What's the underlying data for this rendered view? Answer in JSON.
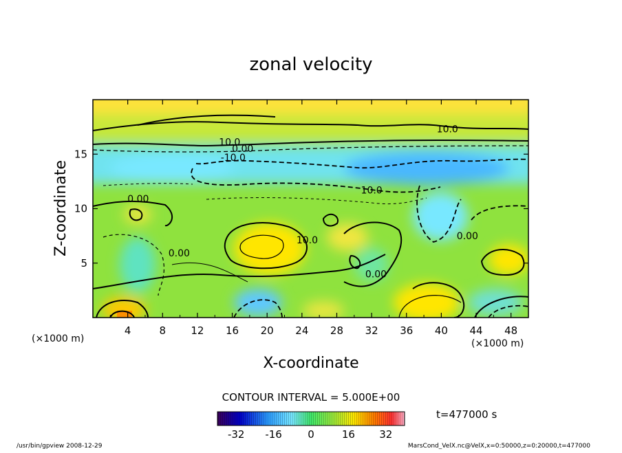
{
  "chart_data": {
    "type": "heatmap",
    "title": "zonal velocity",
    "xlabel": "X-coordinate",
    "ylabel": "Z-coordinate",
    "x_unit_label": "(×1000 m)",
    "y_unit_label": "(×1000 m)",
    "xlim": [
      0,
      50
    ],
    "ylim": [
      0,
      20
    ],
    "x_ticks": [
      4,
      8,
      12,
      16,
      20,
      24,
      28,
      32,
      36,
      40,
      44,
      48
    ],
    "y_ticks": [
      5,
      10,
      15
    ],
    "contour_interval_label": "CONTOUR INTERVAL = 5.000E+00",
    "time_label": "t=477000 s",
    "colorbar": {
      "min": -40,
      "max": 40,
      "ticks": [
        -32,
        -16,
        0,
        16,
        32
      ],
      "colormap": [
        "#3a0058",
        "#0000c8",
        "#2a9bff",
        "#78e8ff",
        "#3fe66a",
        "#9be83a",
        "#ffe600",
        "#ff7a00",
        "#ff3030",
        "#ffb0c8"
      ]
    },
    "contour_labels": [
      {
        "text": "10.0",
        "x": 40.7,
        "z": 17.0
      },
      {
        "text": "10.0",
        "x": 15.7,
        "z": 15.8
      },
      {
        "text": "0.00",
        "x": 17.2,
        "z": 15.2
      },
      {
        "text": "-10.0",
        "x": 16.1,
        "z": 14.4
      },
      {
        "text": "10.0",
        "x": 32.0,
        "z": 11.4
      },
      {
        "text": "0.00",
        "x": 5.2,
        "z": 10.6
      },
      {
        "text": "0.00",
        "x": 9.9,
        "z": 5.6
      },
      {
        "text": "10.0",
        "x": 24.6,
        "z": 6.8
      },
      {
        "text": "0.00",
        "x": 32.5,
        "z": 3.7
      },
      {
        "text": "0.00",
        "x": 43.0,
        "z": 7.2
      }
    ],
    "footer_left": "/usr/bin/gpview   2008-12-29",
    "footer_right": "MarsCond_VelX.nc@VelX,x=0:50000,z=0:20000,t=477000"
  }
}
